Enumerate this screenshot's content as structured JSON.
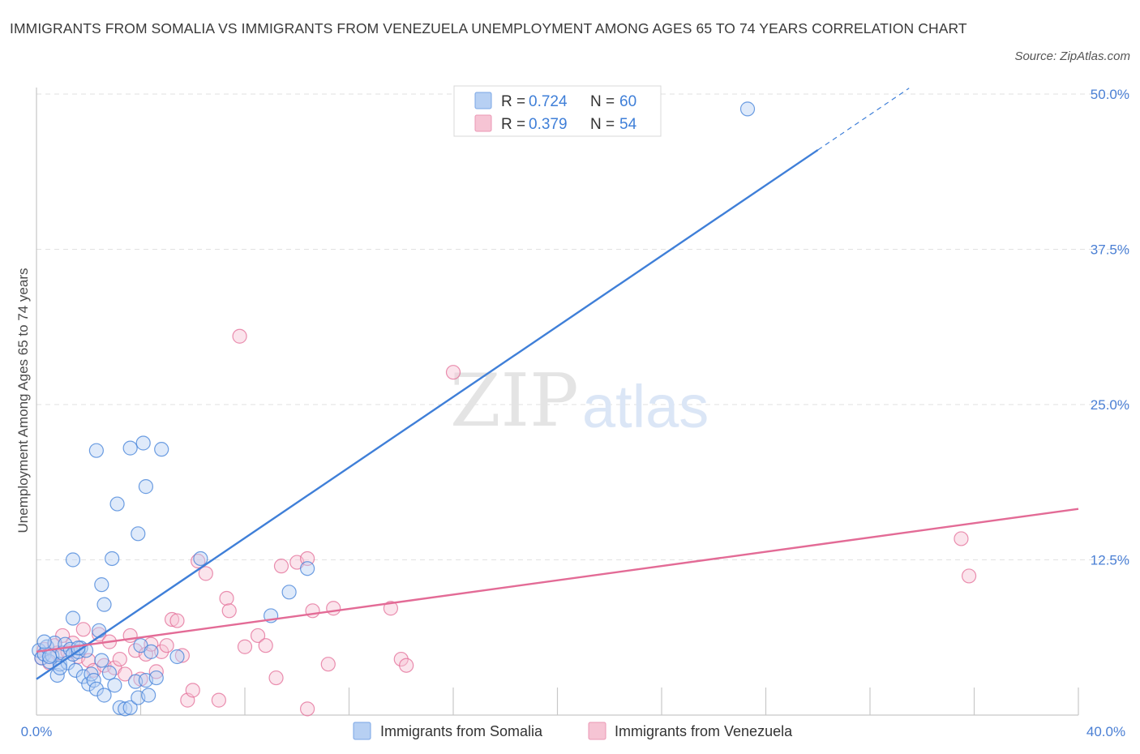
{
  "title": "IMMIGRANTS FROM SOMALIA VS IMMIGRANTS FROM VENEZUELA UNEMPLOYMENT AMONG AGES 65 TO 74 YEARS CORRELATION CHART",
  "source": "Source: ZipAtlas.com",
  "watermark": {
    "zip": "ZIP",
    "atlas": "atlas"
  },
  "colors": {
    "somalia": "#3f7fd8",
    "somalia_fill": "#b7d0f3",
    "venezuela": "#e36b96",
    "venezuela_fill": "#f6c4d4",
    "grid": "#dddddd",
    "tick": "#4a7fd4"
  },
  "legend": {
    "r_label": "R =",
    "n_label": "N =",
    "series": [
      {
        "r": "0.724",
        "n": "60"
      },
      {
        "r": "0.379",
        "n": "54"
      }
    ]
  },
  "chart_data": {
    "type": "scatter",
    "title": "IMMIGRANTS FROM SOMALIA VS IMMIGRANTS FROM VENEZUELA UNEMPLOYMENT AMONG AGES 65 TO 74 YEARS CORRELATION CHART",
    "xlabel": "",
    "ylabel": "Unemployment Among Ages 65 to 74 years",
    "xlim": [
      0,
      40
    ],
    "ylim": [
      0,
      50
    ],
    "x_tick_labels": [
      "0.0%",
      "40.0%"
    ],
    "y_ticks": [
      12.5,
      25.0,
      37.5,
      50.0
    ],
    "y_tick_labels": [
      "12.5%",
      "25.0%",
      "37.5%",
      "50.0%"
    ],
    "series": [
      {
        "name": "Immigrants from Somalia",
        "trend": {
          "x0": 0,
          "y0": 2.9,
          "x1": 30.0,
          "y1": 45.5,
          "dash_to_x": 33.5
        },
        "points": [
          [
            0.1,
            5.2
          ],
          [
            0.2,
            4.6
          ],
          [
            0.3,
            4.9
          ],
          [
            0.4,
            5.5
          ],
          [
            0.5,
            4.3
          ],
          [
            0.6,
            4.8
          ],
          [
            0.7,
            5.8
          ],
          [
            0.8,
            3.2
          ],
          [
            0.9,
            4.1
          ],
          [
            1.0,
            5.0
          ],
          [
            1.1,
            5.7
          ],
          [
            1.2,
            4.2
          ],
          [
            1.3,
            5.3
          ],
          [
            1.4,
            4.9
          ],
          [
            1.5,
            3.6
          ],
          [
            1.6,
            5.1
          ],
          [
            1.7,
            5.4
          ],
          [
            1.8,
            3.1
          ],
          [
            1.9,
            5.2
          ],
          [
            2.0,
            2.5
          ],
          [
            2.1,
            3.3
          ],
          [
            2.2,
            2.8
          ],
          [
            2.3,
            2.1
          ],
          [
            2.4,
            6.8
          ],
          [
            2.5,
            4.4
          ],
          [
            2.6,
            1.6
          ],
          [
            2.8,
            3.4
          ],
          [
            3.0,
            2.4
          ],
          [
            3.2,
            0.6
          ],
          [
            3.4,
            0.5
          ],
          [
            3.6,
            0.6
          ],
          [
            3.8,
            2.7
          ],
          [
            3.9,
            1.4
          ],
          [
            4.0,
            5.6
          ],
          [
            4.2,
            2.8
          ],
          [
            4.3,
            1.6
          ],
          [
            4.4,
            5.1
          ],
          [
            4.6,
            3.0
          ],
          [
            1.4,
            7.8
          ],
          [
            1.4,
            12.5
          ],
          [
            2.5,
            10.5
          ],
          [
            2.6,
            8.9
          ],
          [
            2.9,
            12.6
          ],
          [
            3.1,
            17.0
          ],
          [
            3.9,
            14.6
          ],
          [
            4.1,
            21.9
          ],
          [
            4.2,
            18.4
          ],
          [
            4.8,
            21.4
          ],
          [
            2.3,
            21.3
          ],
          [
            3.6,
            21.5
          ],
          [
            5.4,
            4.7
          ],
          [
            6.3,
            12.6
          ],
          [
            9.0,
            8.0
          ],
          [
            9.7,
            9.9
          ],
          [
            10.4,
            11.8
          ],
          [
            27.3,
            48.8
          ],
          [
            0.3,
            5.9
          ],
          [
            0.9,
            3.8
          ],
          [
            1.6,
            5.4
          ],
          [
            0.5,
            4.7
          ]
        ]
      },
      {
        "name": "Immigrants from Venezuela",
        "trend": {
          "x0": 0,
          "y0": 5.1,
          "x1": 40.0,
          "y1": 16.6
        },
        "points": [
          [
            0.2,
            4.6
          ],
          [
            0.3,
            5.3
          ],
          [
            0.5,
            4.2
          ],
          [
            0.7,
            5.6
          ],
          [
            0.8,
            5.0
          ],
          [
            1.0,
            6.4
          ],
          [
            1.2,
            5.1
          ],
          [
            1.4,
            5.8
          ],
          [
            1.6,
            4.7
          ],
          [
            1.8,
            6.9
          ],
          [
            2.0,
            4.4
          ],
          [
            2.2,
            3.6
          ],
          [
            2.4,
            6.5
          ],
          [
            2.6,
            4.0
          ],
          [
            2.8,
            5.9
          ],
          [
            3.0,
            3.8
          ],
          [
            3.2,
            4.5
          ],
          [
            3.4,
            3.3
          ],
          [
            3.6,
            6.4
          ],
          [
            3.8,
            5.2
          ],
          [
            4.0,
            2.9
          ],
          [
            4.2,
            4.9
          ],
          [
            4.4,
            5.7
          ],
          [
            4.6,
            3.5
          ],
          [
            4.8,
            5.1
          ],
          [
            5.0,
            5.6
          ],
          [
            5.2,
            7.7
          ],
          [
            5.4,
            7.6
          ],
          [
            5.6,
            4.8
          ],
          [
            5.8,
            1.2
          ],
          [
            6.0,
            2.0
          ],
          [
            6.2,
            12.4
          ],
          [
            6.5,
            11.4
          ],
          [
            7.0,
            1.2
          ],
          [
            7.3,
            9.4
          ],
          [
            7.4,
            8.4
          ],
          [
            7.8,
            30.5
          ],
          [
            8.0,
            5.5
          ],
          [
            8.5,
            6.4
          ],
          [
            8.8,
            5.6
          ],
          [
            9.2,
            3.0
          ],
          [
            9.4,
            12.0
          ],
          [
            10.0,
            12.3
          ],
          [
            10.4,
            12.6
          ],
          [
            10.6,
            8.4
          ],
          [
            10.4,
            0.5
          ],
          [
            11.2,
            4.1
          ],
          [
            11.4,
            8.6
          ],
          [
            13.6,
            8.6
          ],
          [
            14.0,
            4.5
          ],
          [
            14.2,
            4.0
          ],
          [
            16.0,
            27.6
          ],
          [
            35.5,
            14.2
          ],
          [
            35.8,
            11.2
          ]
        ]
      }
    ],
    "legend_labels": [
      "Immigrants from Somalia",
      "Immigrants from Venezuela"
    ]
  }
}
